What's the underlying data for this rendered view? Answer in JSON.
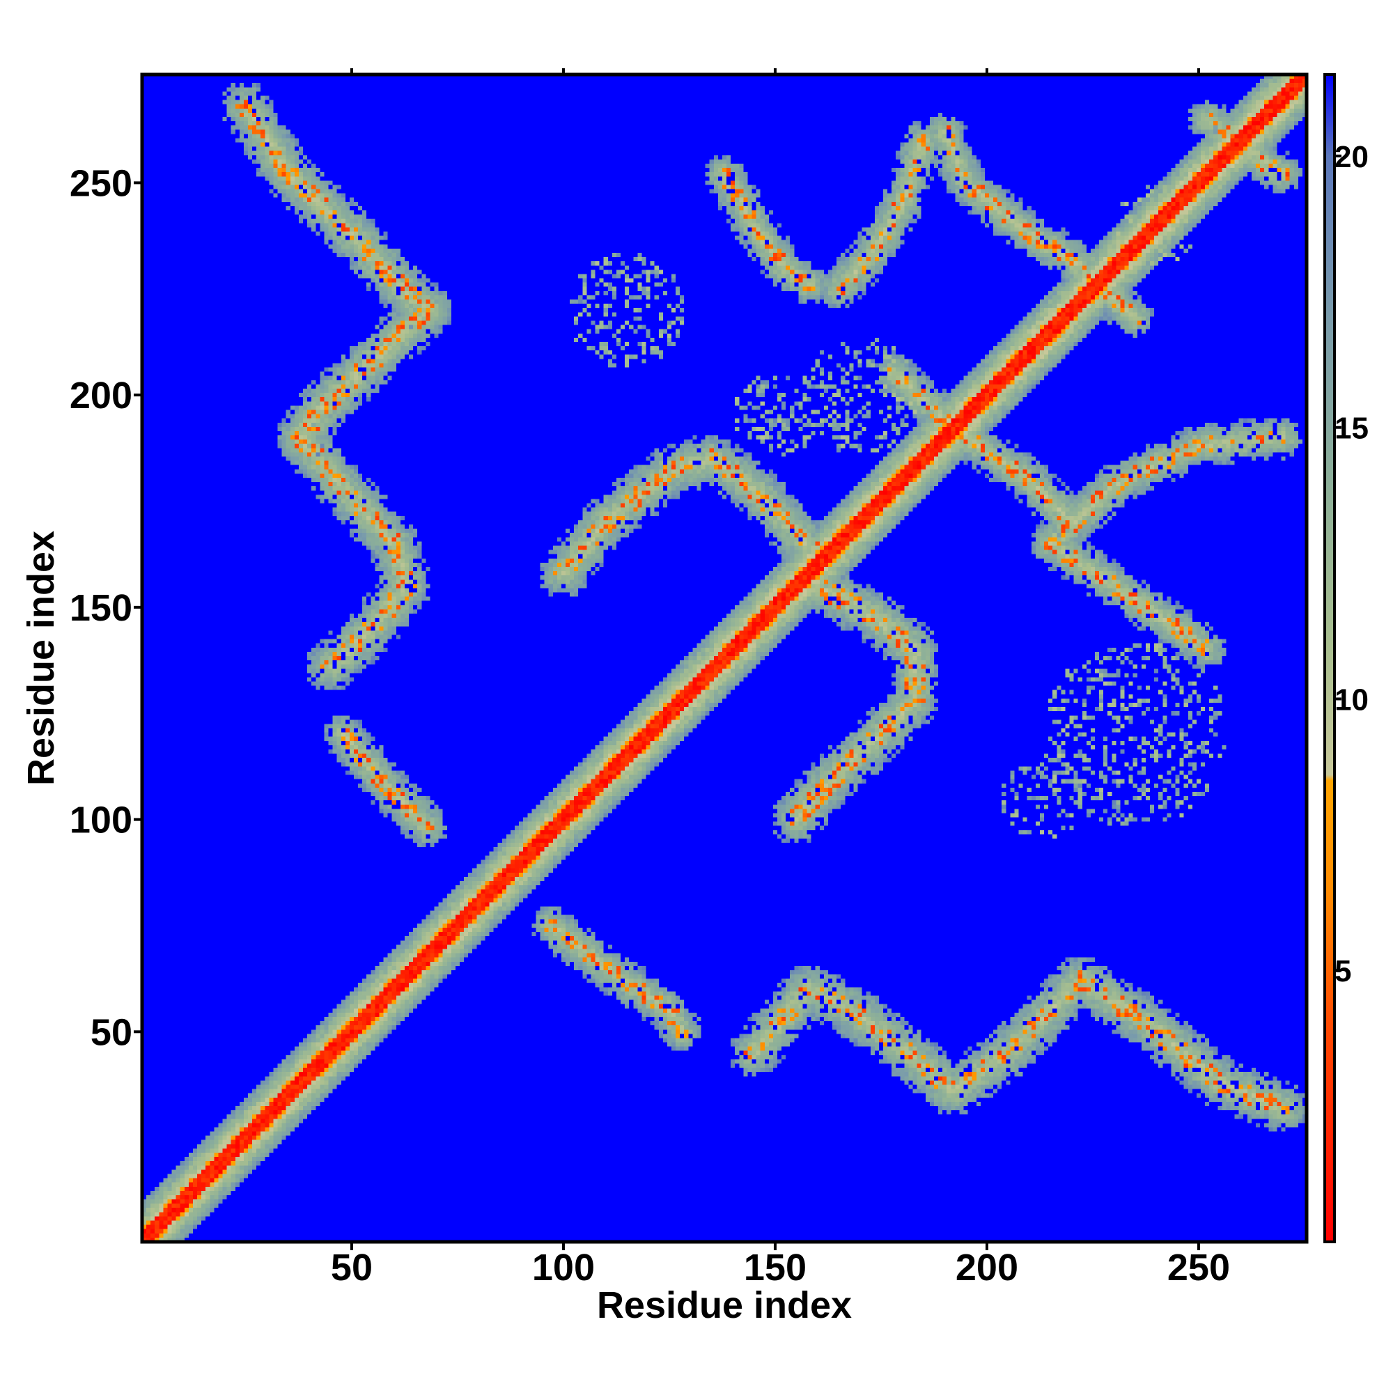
{
  "chart_data": {
    "type": "heatmap",
    "title": "",
    "xlabel": "Residue index",
    "ylabel": "Residue index",
    "xlim": [
      1,
      275
    ],
    "ylim": [
      1,
      275
    ],
    "x_ticks": [
      50,
      100,
      150,
      200,
      250
    ],
    "y_ticks": [
      50,
      100,
      150,
      200,
      250
    ],
    "colorbar": {
      "ticks": [
        5,
        10,
        15,
        20
      ],
      "range": [
        0,
        21.5
      ],
      "stops": [
        {
          "value": 0,
          "color": "#ff0000"
        },
        {
          "value": 4,
          "color": "#ff4a00"
        },
        {
          "value": 6.5,
          "color": "#ff8c00"
        },
        {
          "value": 8.5,
          "color": "#ffa500"
        },
        {
          "value": 8.6,
          "color": "#c8c89a"
        },
        {
          "value": 11,
          "color": "#a9bf8f"
        },
        {
          "value": 14,
          "color": "#8caf99"
        },
        {
          "value": 17,
          "color": "#7a9cab"
        },
        {
          "value": 20,
          "color": "#5c78bc"
        },
        {
          "value": 21.5,
          "color": "#0000ff"
        }
      ]
    },
    "background_value": 21.5,
    "diagonal": {
      "core_width": 3.5,
      "band_width": 14
    },
    "contact_bands": [
      {
        "points": [
          [
            25,
            268
          ],
          [
            35,
            252
          ],
          [
            50,
            238
          ],
          [
            63,
            224
          ],
          [
            68,
            220
          ]
        ],
        "width": 6
      },
      {
        "points": [
          [
            68,
            220
          ],
          [
            55,
            208
          ],
          [
            43,
            197
          ],
          [
            38,
            190
          ]
        ],
        "width": 6
      },
      {
        "points": [
          [
            38,
            190
          ],
          [
            48,
            178
          ],
          [
            60,
            165
          ],
          [
            63,
            155
          ],
          [
            55,
            145
          ],
          [
            45,
            136
          ]
        ],
        "width": 6
      },
      {
        "points": [
          [
            48,
            120
          ],
          [
            58,
            108
          ],
          [
            68,
            98
          ]
        ],
        "width": 5
      },
      {
        "points": [
          [
            100,
            158
          ],
          [
            110,
            170
          ],
          [
            125,
            182
          ],
          [
            135,
            185
          ],
          [
            145,
            178
          ],
          [
            160,
            162
          ]
        ],
        "width": 6
      },
      {
        "points": [
          [
            138,
            252
          ],
          [
            145,
            240
          ],
          [
            152,
            230
          ],
          [
            158,
            226
          ]
        ],
        "width": 5
      },
      {
        "points": [
          [
            160,
            155
          ],
          [
            173,
            148
          ],
          [
            183,
            140
          ],
          [
            183,
            128
          ],
          [
            175,
            120
          ],
          [
            162,
            108
          ],
          [
            155,
            100
          ]
        ],
        "width": 6
      },
      {
        "points": [
          [
            145,
            45
          ],
          [
            158,
            60
          ],
          [
            168,
            55
          ],
          [
            180,
            46
          ],
          [
            192,
            36
          ],
          [
            205,
            45
          ],
          [
            222,
            62
          ],
          [
            238,
            52
          ],
          [
            255,
            38
          ],
          [
            270,
            32
          ]
        ],
        "width": 6
      },
      {
        "points": [
          [
            97,
            75
          ],
          [
            110,
            65
          ],
          [
            125,
            55
          ],
          [
            128,
            50
          ]
        ],
        "width": 5
      },
      {
        "points": [
          [
            215,
            165
          ],
          [
            230,
            155
          ],
          [
            245,
            145
          ],
          [
            252,
            140
          ]
        ],
        "width": 5
      },
      {
        "points": [
          [
            215,
            165
          ],
          [
            232,
            180
          ],
          [
            250,
            188
          ],
          [
            270,
            190
          ]
        ],
        "width": 5
      },
      {
        "points": [
          [
            252,
            265
          ],
          [
            265,
            255
          ],
          [
            270,
            252
          ]
        ],
        "width": 5
      },
      {
        "points": [
          [
            178,
            205
          ],
          [
            195,
            190
          ],
          [
            210,
            180
          ],
          [
            220,
            170
          ]
        ],
        "width": 5
      },
      {
        "points": [
          [
            185,
            260
          ],
          [
            180,
            245
          ],
          [
            172,
            232
          ],
          [
            165,
            225
          ]
        ],
        "width": 5
      },
      {
        "points": [
          [
            190,
            262
          ],
          [
            195,
            250
          ],
          [
            210,
            238
          ],
          [
            220,
            232
          ],
          [
            235,
            218
          ]
        ],
        "width": 5
      }
    ],
    "scatter_zones": [
      {
        "center": [
          115,
          220
        ],
        "radius": 14
      },
      {
        "center": [
          170,
          200
        ],
        "radius": 14
      },
      {
        "center": [
          235,
          120
        ],
        "radius": 22
      },
      {
        "center": [
          213,
          105
        ],
        "radius": 10
      },
      {
        "center": [
          240,
          240
        ],
        "radius": 10
      },
      {
        "center": [
          150,
          195
        ],
        "radius": 10
      }
    ]
  }
}
